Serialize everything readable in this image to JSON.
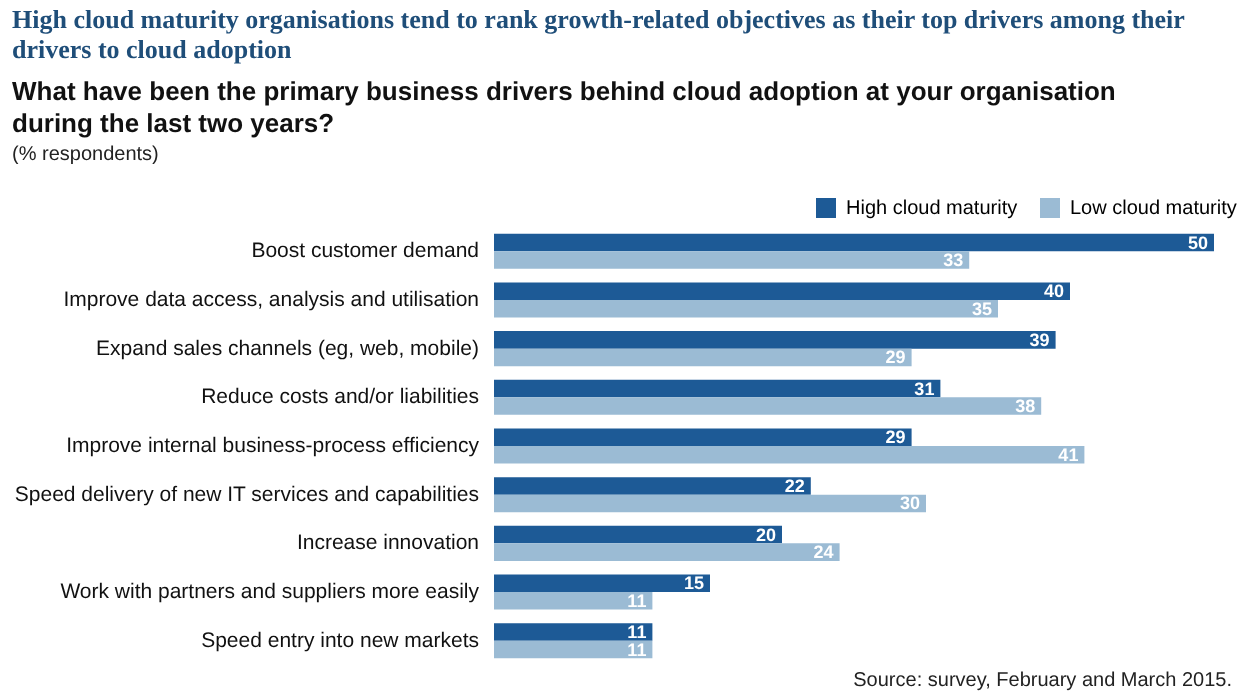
{
  "chart_data": {
    "type": "bar",
    "orientation": "horizontal",
    "title": "High cloud maturity organisations tend to rank growth-related objectives as their top drivers among their drivers to cloud adoption",
    "subtitle": "What have been the primary business drivers behind cloud adoption at your organisation during the last two years?",
    "annotations": [
      "(% respondents)",
      "Source: survey, February and March 2015."
    ],
    "categories": [
      "Boost customer demand",
      "Improve data access, analysis and utilisation",
      "Expand sales channels (eg, web, mobile)",
      "Reduce costs and/or liabilities",
      "Improve internal business-process efficiency",
      "Speed delivery of new IT services and capabilities",
      "Increase innovation",
      "Work with partners and suppliers more easily",
      "Speed entry into new markets"
    ],
    "series": [
      {
        "name": "High cloud maturity",
        "color": "#1d5a96",
        "values": [
          50,
          40,
          39,
          31,
          29,
          22,
          20,
          15,
          11
        ]
      },
      {
        "name": "Low cloud maturity",
        "color": "#9bbbd4",
        "values": [
          33,
          35,
          29,
          38,
          41,
          30,
          24,
          11,
          11
        ]
      }
    ],
    "data_labels": true,
    "legend": "top right"
  }
}
